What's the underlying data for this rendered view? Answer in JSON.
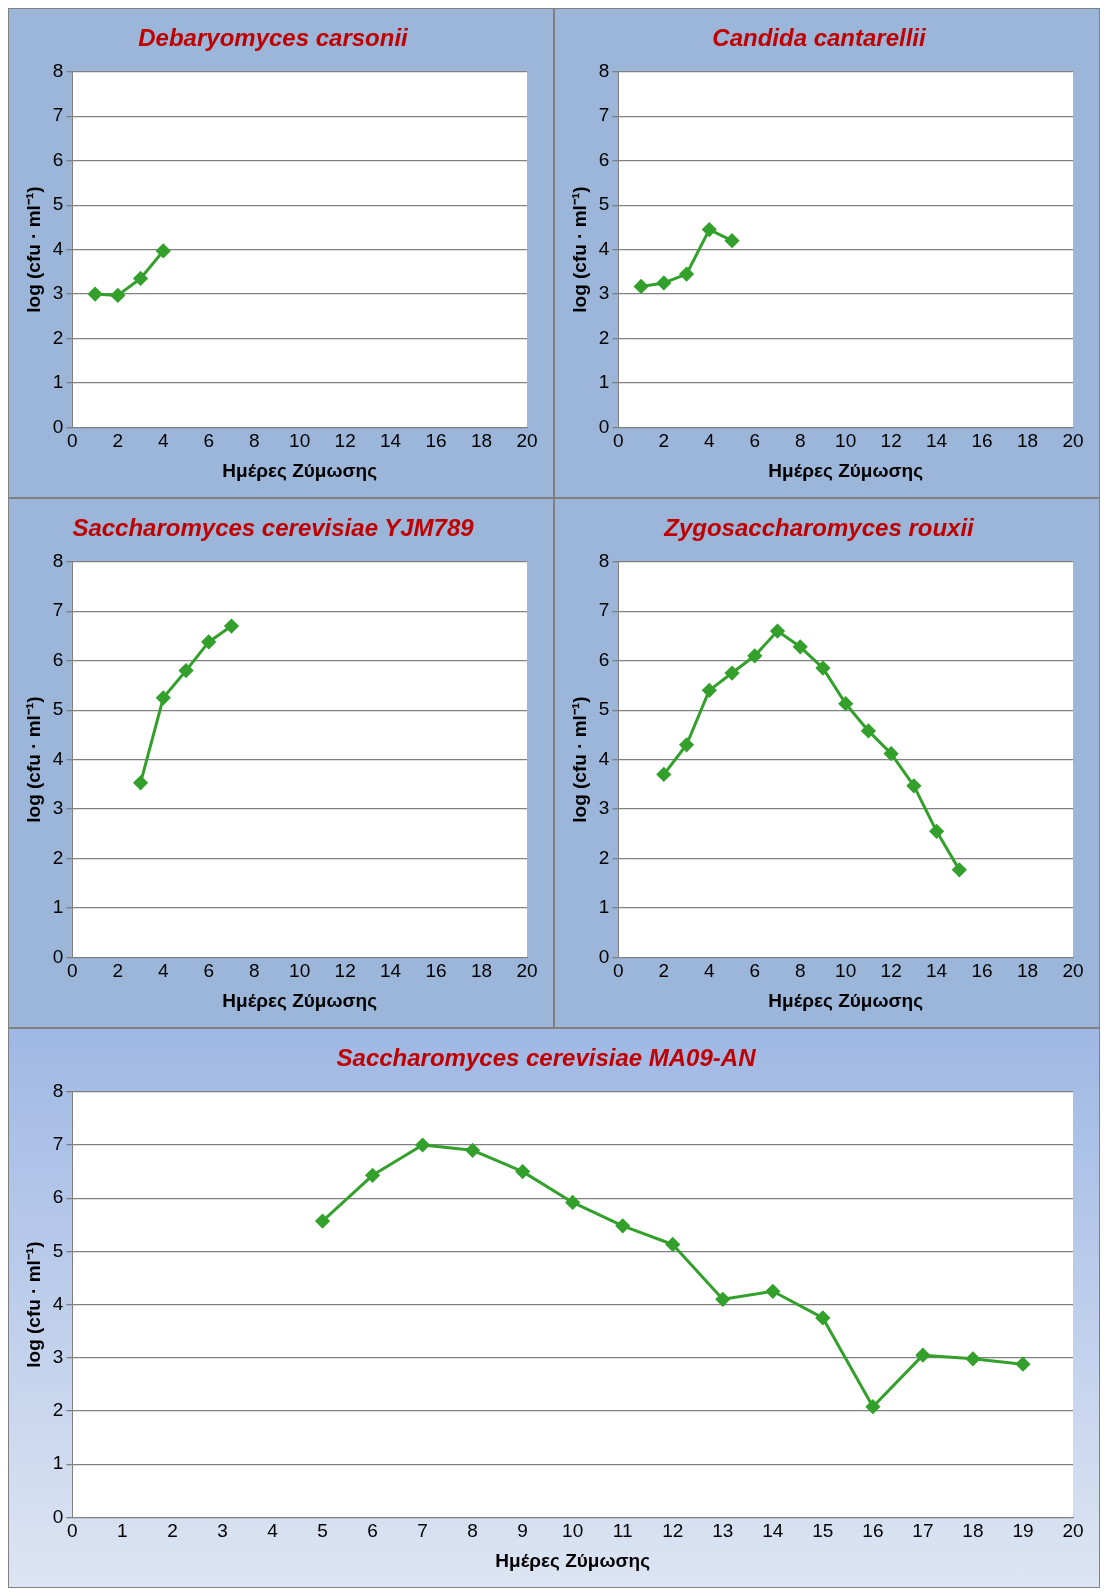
{
  "chart_data": [
    {
      "type": "line",
      "title": "Debaryomyces carsonii",
      "xlabel": "Ημέρες Ζύμωσης",
      "ylabel": "log (cfu · ml⁻¹)",
      "x": [
        1,
        2,
        3,
        4
      ],
      "series": [
        {
          "color": "#33a02c",
          "values": [
            3.0,
            2.97,
            3.35,
            3.97
          ]
        }
      ],
      "xlim": [
        0,
        20
      ],
      "xticks": [
        0,
        2,
        4,
        6,
        8,
        10,
        12,
        14,
        16,
        18,
        20
      ],
      "ylim": [
        0,
        8
      ],
      "yticks": [
        0,
        1,
        2,
        3,
        4,
        5,
        6,
        7,
        8
      ],
      "grid": "y",
      "marker": "diamond"
    },
    {
      "type": "line",
      "title": "Candida cantarellii",
      "xlabel": "Ημέρες Ζύμωσης",
      "ylabel": "log (cfu · ml⁻¹)",
      "x": [
        1,
        2,
        3,
        4,
        5
      ],
      "series": [
        {
          "color": "#33a02c",
          "values": [
            3.17,
            3.25,
            3.45,
            4.45,
            4.2
          ]
        }
      ],
      "xlim": [
        0,
        20
      ],
      "xticks": [
        0,
        2,
        4,
        6,
        8,
        10,
        12,
        14,
        16,
        18,
        20
      ],
      "ylim": [
        0,
        8
      ],
      "yticks": [
        0,
        1,
        2,
        3,
        4,
        5,
        6,
        7,
        8
      ],
      "grid": "y",
      "marker": "diamond"
    },
    {
      "type": "line",
      "title": "Saccharomyces cerevisiae YJM789",
      "xlabel": "Ημέρες Ζύμωσης",
      "ylabel": "log (cfu · ml⁻¹)",
      "x": [
        3,
        4,
        5,
        6,
        7
      ],
      "series": [
        {
          "color": "#33a02c",
          "values": [
            3.53,
            5.25,
            5.8,
            6.38,
            6.7
          ]
        }
      ],
      "xlim": [
        0,
        20
      ],
      "xticks": [
        0,
        2,
        4,
        6,
        8,
        10,
        12,
        14,
        16,
        18,
        20
      ],
      "ylim": [
        0,
        8
      ],
      "yticks": [
        0,
        1,
        2,
        3,
        4,
        5,
        6,
        7,
        8
      ],
      "grid": "y",
      "marker": "diamond"
    },
    {
      "type": "line",
      "title": "Zygosaccharomyces rouxii",
      "xlabel": "Ημέρες Ζύμωσης",
      "ylabel": "log (cfu · ml⁻¹)",
      "x": [
        2,
        3,
        4,
        5,
        6,
        7,
        8,
        9,
        10,
        11,
        12,
        13,
        14,
        15
      ],
      "series": [
        {
          "color": "#33a02c",
          "values": [
            3.7,
            4.3,
            5.4,
            5.75,
            6.1,
            6.6,
            6.28,
            5.85,
            5.13,
            4.58,
            4.12,
            3.47,
            2.55,
            1.77
          ]
        }
      ],
      "xlim": [
        0,
        20
      ],
      "xticks": [
        0,
        2,
        4,
        6,
        8,
        10,
        12,
        14,
        16,
        18,
        20
      ],
      "ylim": [
        0,
        8
      ],
      "yticks": [
        0,
        1,
        2,
        3,
        4,
        5,
        6,
        7,
        8
      ],
      "grid": "y",
      "marker": "diamond"
    },
    {
      "type": "line",
      "title": "Saccharomyces cerevisiae MA09-AN",
      "xlabel": "Ημέρες Ζύμωσης",
      "ylabel": "log (cfu · ml⁻¹)",
      "x": [
        5,
        6,
        7,
        8,
        9,
        10,
        11,
        12,
        13,
        14,
        15,
        16,
        17,
        18,
        19
      ],
      "series": [
        {
          "color": "#33a02c",
          "values": [
            5.57,
            6.43,
            7.0,
            6.9,
            6.5,
            5.92,
            5.48,
            5.13,
            4.1,
            4.25,
            3.75,
            2.08,
            3.05,
            2.98,
            2.88
          ]
        }
      ],
      "xlim": [
        0,
        20
      ],
      "xticks": [
        0,
        1,
        2,
        3,
        4,
        5,
        6,
        7,
        8,
        9,
        10,
        11,
        12,
        13,
        14,
        15,
        16,
        17,
        18,
        19,
        20
      ],
      "ylim": [
        0,
        8
      ],
      "yticks": [
        0,
        1,
        2,
        3,
        4,
        5,
        6,
        7,
        8
      ],
      "grid": "y",
      "marker": "diamond"
    }
  ]
}
